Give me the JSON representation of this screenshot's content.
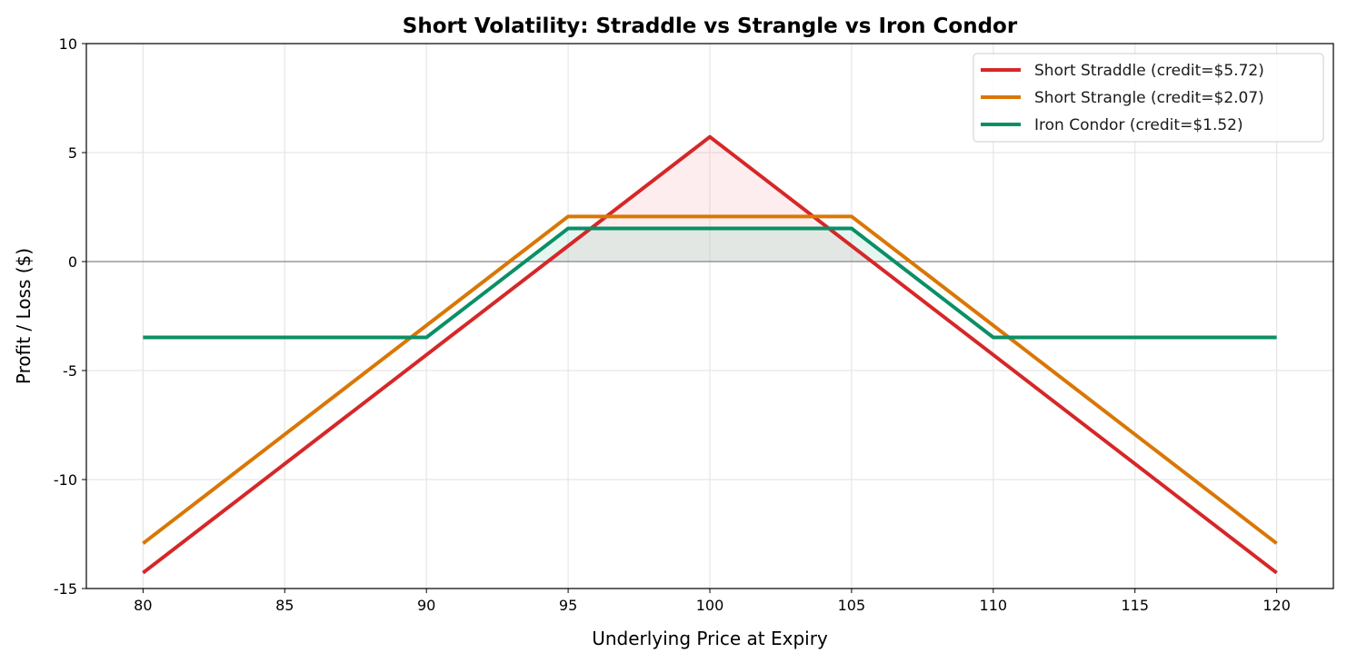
{
  "chart_data": {
    "type": "line",
    "title": "Short Volatility: Straddle vs Strangle vs Iron Condor",
    "xlabel": "Underlying Price at Expiry",
    "ylabel": "Profit / Loss ($)",
    "xlim": [
      78,
      122
    ],
    "ylim": [
      -15,
      10
    ],
    "xticks": [
      80,
      85,
      90,
      95,
      100,
      105,
      110,
      115,
      120
    ],
    "yticks": [
      -15,
      -10,
      -5,
      0,
      5,
      10
    ],
    "grid": true,
    "legend_position": "top-right",
    "series": [
      {
        "name": "Short Straddle (credit=$5.72)",
        "color": "#d62728",
        "x": [
          80,
          100,
          120
        ],
        "y": [
          -14.28,
          5.72,
          -14.28
        ],
        "fill_positive": true,
        "fill_color": "#f4a6b0"
      },
      {
        "name": "Short Strangle (credit=$2.07)",
        "color": "#d97706",
        "x": [
          80,
          95,
          105,
          120
        ],
        "y": [
          -12.93,
          2.07,
          2.07,
          -12.93
        ]
      },
      {
        "name": "Iron Condor (credit=$1.52)",
        "color": "#0b8f66",
        "x": [
          80,
          90,
          95,
          105,
          110,
          120
        ],
        "y": [
          -3.48,
          -3.48,
          1.52,
          1.52,
          -3.48,
          -3.48
        ],
        "fill_positive": true,
        "fill_color": "#7fd3b8"
      }
    ]
  }
}
